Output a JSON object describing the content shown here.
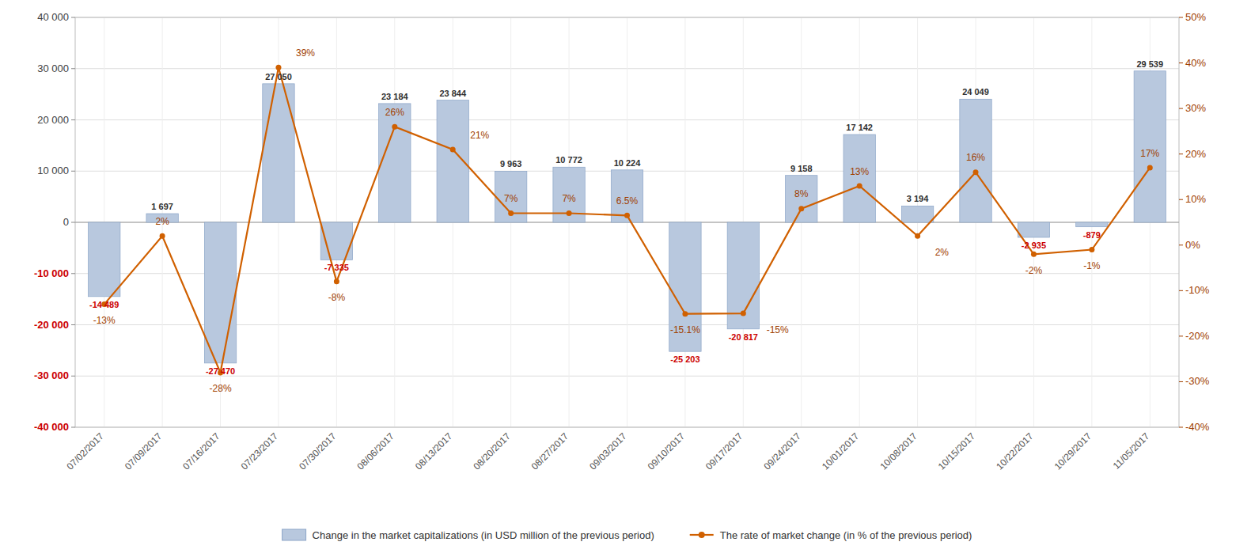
{
  "chart_data": {
    "type": "bar",
    "categories": [
      "07/02/2017",
      "07/09/2017",
      "07/16/2017",
      "07/23/2017",
      "07/30/2017",
      "08/06/2017",
      "08/13/2017",
      "08/20/2017",
      "08/27/2017",
      "09/03/2017",
      "09/10/2017",
      "09/17/2017",
      "09/24/2017",
      "10/01/2017",
      "10/08/2017",
      "10/15/2017",
      "10/22/2017",
      "10/29/2017",
      "11/05/2017"
    ],
    "series": [
      {
        "name": "Change in the market capitalizations  (in USD million of the previous period)",
        "type": "bar",
        "color": "#b8c8de",
        "values": [
          -14489,
          1697,
          -27470,
          27050,
          -7335,
          23184,
          23844,
          9963,
          10772,
          10224,
          -25203,
          -20817,
          9158,
          17142,
          3194,
          24049,
          -2935,
          -879,
          29539
        ],
        "value_labels": [
          "-14 489",
          "1 697",
          "-27 470",
          "27 050",
          "-7 335",
          "23 184",
          "23 844",
          "9 963",
          "10 772",
          "10 224",
          "-25 203",
          "-20 817",
          "9 158",
          "17 142",
          "3 194",
          "24 049",
          "-2 935",
          "-879",
          "29 539"
        ]
      },
      {
        "name": "The rate of market change (in % of the previous period)",
        "type": "line",
        "color": "#d06000",
        "axis": "y2",
        "marker": "circle",
        "line_style": "solid",
        "values": [
          -13,
          2,
          -28,
          39,
          -8,
          26,
          21,
          7,
          7,
          6.5,
          -15.1,
          -15,
          8,
          13,
          2,
          16,
          -2,
          -1,
          17
        ],
        "value_labels": [
          "-13%",
          "2%",
          "-28%",
          "39%",
          "-8%",
          "26%",
          "21%",
          "7%",
          "7%",
          "6.5%",
          "-15.1%",
          "-15%",
          "8%",
          "13%",
          "2%",
          "16%",
          "-2%",
          "-1%",
          "17%"
        ]
      }
    ],
    "ylim": [
      -40000,
      40000
    ],
    "yticks": [
      {
        "value": -40000,
        "label": "-40 000"
      },
      {
        "value": -30000,
        "label": "-30 000"
      },
      {
        "value": -20000,
        "label": "-20 000"
      },
      {
        "value": -10000,
        "label": "-10 000"
      },
      0,
      {
        "value": 10000,
        "label": "10 000"
      },
      {
        "value": 20000,
        "label": "20 000"
      },
      {
        "value": 30000,
        "label": "30 000"
      },
      {
        "value": 40000,
        "label": "40 000"
      }
    ],
    "y2lim": [
      -40,
      50
    ],
    "y2ticks": [
      {
        "value": -40,
        "label": "-40%"
      },
      {
        "value": -30,
        "label": "-30%"
      },
      {
        "value": -20,
        "label": "-20%"
      },
      {
        "value": -10,
        "label": "-10%"
      },
      {
        "value": 0,
        "label": "0%"
      },
      {
        "value": 10,
        "label": "10%"
      },
      {
        "value": 20,
        "label": "20%"
      },
      {
        "value": 30,
        "label": "30%"
      },
      {
        "value": 40,
        "label": "40%"
      },
      {
        "value": 50,
        "label": "50%"
      }
    ],
    "grid": true,
    "legend": "bottom",
    "data_labels": true
  }
}
